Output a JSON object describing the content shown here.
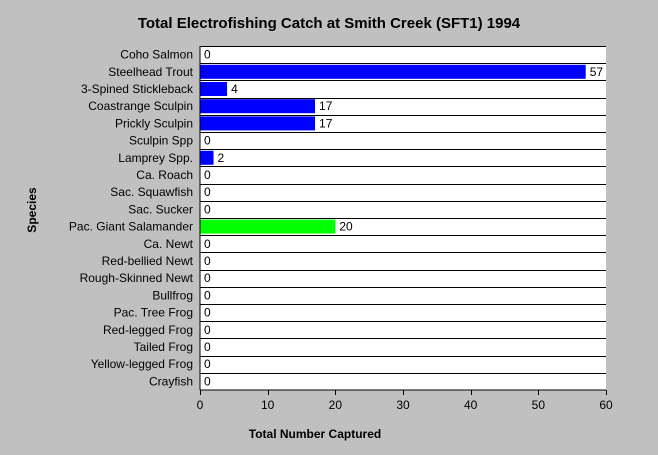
{
  "chart_data": {
    "type": "bar",
    "orientation": "horizontal",
    "title": "Total Electrofishing Catch at Smith Creek (SFT1) 1994",
    "xlabel": "Total Number Captured",
    "ylabel": "Species",
    "xlim": [
      0,
      60
    ],
    "xticks": [
      0,
      10,
      20,
      30,
      40,
      50,
      60
    ],
    "grid": "horizontal lines",
    "legend": "none",
    "categories": [
      "Coho Salmon",
      "Steelhead Trout",
      "3-Spined Stickleback",
      "Coastrange Sculpin",
      "Prickly Sculpin",
      "Sculpin Spp",
      "Lamprey Spp.",
      "Ca. Roach",
      "Sac. Squawfish",
      "Sac. Sucker",
      "Pac. Giant Salamander",
      "Ca. Newt",
      "Red-bellied Newt",
      "Rough-Skinned Newt",
      "Bullfrog",
      "Pac. Tree Frog",
      "Red-legged Frog",
      "Tailed Frog",
      "Yellow-legged Frog",
      "Crayfish"
    ],
    "values": [
      0,
      57,
      4,
      17,
      17,
      0,
      2,
      0,
      0,
      0,
      20,
      0,
      0,
      0,
      0,
      0,
      0,
      0,
      0,
      0
    ],
    "bar_colors": [
      "#0000ff",
      "#0000ff",
      "#0000ff",
      "#0000ff",
      "#0000ff",
      "#0000ff",
      "#0000ff",
      "#0000ff",
      "#0000ff",
      "#0000ff",
      "#00ff00",
      "#0000ff",
      "#0000ff",
      "#0000ff",
      "#0000ff",
      "#0000ff",
      "#0000ff",
      "#0000ff",
      "#0000ff",
      "#0000ff"
    ]
  },
  "colors": {
    "background": "#c0c0c0",
    "plot_background": "#ffffff",
    "fish_bar": "#0000ff",
    "amphibian_bar": "#00ff00"
  }
}
